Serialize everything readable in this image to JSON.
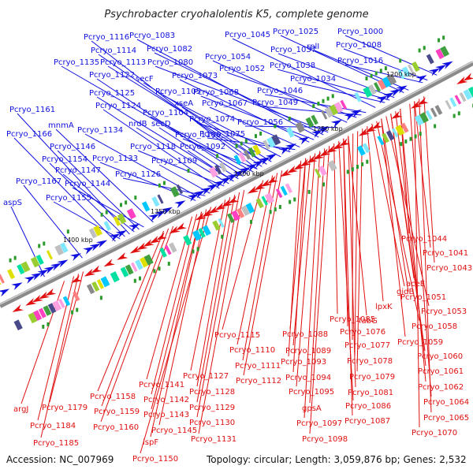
{
  "title": "Psychrobacter cryohalolentis K5, complete genome",
  "footer": {
    "accession": "Accession: NC_007969",
    "summary": "Topology: circular; Length: 3,059,876 bp; Genes: 2,532"
  },
  "colors": {
    "forward": "#1010e0",
    "reverse": "#e01010",
    "backbone": "#888888"
  },
  "ticks": [
    "1200 kbp",
    "1250 kbp",
    "1300 kbp",
    "1350 kbp",
    "1400 kbp"
  ],
  "blue_labels": [
    "Pcryo_1000",
    "Pcryo_1008",
    "Pcryo_1016",
    "Pcryo_1025",
    "rplI",
    "Pcryo_1037",
    "Pcryo_1038",
    "Pcryo_1034",
    "Pcryo_1045",
    "Pcryo_1054",
    "Pcryo_1052",
    "Pcryo_1046",
    "Pcryo_1049",
    "Pcryo_1056",
    "Pcryo_1083",
    "Pcryo_1082",
    "Pcryo_1080",
    "Pcryo_1073",
    "Pcryo_1068",
    "Pcryo_1067",
    "Pcryo_1074",
    "Pcryo_1075",
    "Pcryo_1116",
    "Pcryo_1114",
    "Pcryo_1113",
    "Pcryo_1135",
    "Pcryo_1122",
    "secF",
    "Pcryo_1125",
    "Pcryo_1105",
    "Pcryo_1124",
    "xseA",
    "Pcryo_1104",
    "nrdB",
    "secD",
    "Pcryo_1106",
    "Pcryo_1092",
    "Pcryo_1118",
    "Pcryo_1134",
    "Pcryo_1133",
    "Pcryo_1109",
    "Pcryo_1126",
    "Pcryo_1161",
    "mnmA",
    "Pcryo_1166",
    "Pcryo_1146",
    "Pcryo_1154",
    "Pcryo_1147",
    "Pcryo_1167",
    "Pcryo_1144",
    "Pcryo_1155",
    "aspS"
  ],
  "red_labels": [
    "Pcryo_1044",
    "Pcryo_1041",
    "Pcryo_1043",
    "aceE",
    "Pcryo_1051",
    "gidB",
    "Pcryo_1053",
    "lpxK",
    "Pcryo_1058",
    "Pcryo_1059",
    "Pcryo_1060",
    "Pcryo_1061",
    "Pcryo_1062",
    "Pcryo_1064",
    "Pcryo_1065",
    "Pcryo_1070",
    "Pcryo_1085",
    "fabG",
    "Pcryo_1076",
    "Pcryo_1077",
    "Pcryo_1078",
    "Pcryo_1079",
    "Pcryo_1081",
    "Pcryo_1086",
    "Pcryo_1087",
    "Pcryo_1088",
    "Pcryo_1089",
    "Pcryo_1093",
    "Pcryo_1094",
    "Pcryo_1095",
    "gpsA",
    "Pcryo_1097",
    "Pcryo_1098",
    "Pcryo_1115",
    "Pcryo_1110",
    "Pcryo_1111",
    "Pcryo_1112",
    "Pcryo_1127",
    "Pcryo_1128",
    "Pcryo_1129",
    "Pcryo_1130",
    "Pcryo_1131",
    "Pcryo_1141",
    "Pcryo_1142",
    "Pcryo_1143",
    "Pcryo_1145",
    "ispF",
    "Pcryo_1150",
    "Pcryo_1158",
    "Pcryo_1159",
    "Pcryo_1160",
    "argJ",
    "Pcryo_1179",
    "Pcryo_1184",
    "Pcryo_1185"
  ]
}
